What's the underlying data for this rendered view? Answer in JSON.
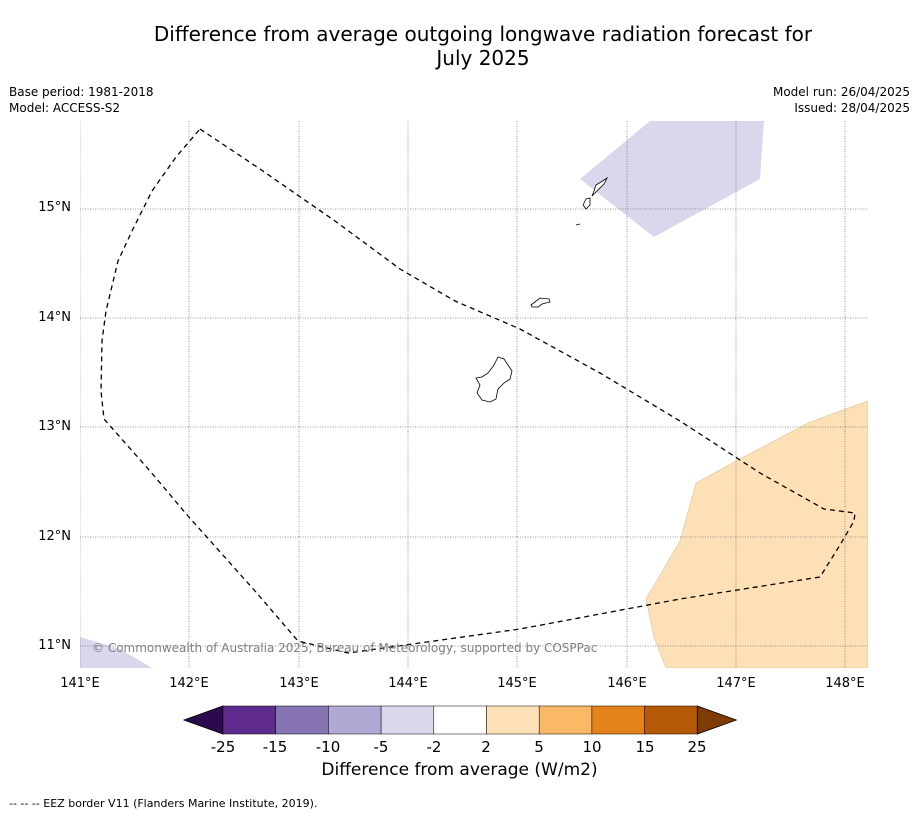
{
  "title_line1": "Difference from average outgoing longwave radiation forecast for",
  "title_line2": "July 2025",
  "meta": {
    "base_period": "Base period: 1981-2018",
    "model": "Model: ACCESS-S2",
    "model_run": "Model run: 26/04/2025",
    "issued": "Issued: 28/04/2025"
  },
  "axes": {
    "lat_ticks": [
      "15°N",
      "14°N",
      "13°N",
      "12°N",
      "11°N"
    ],
    "lon_ticks": [
      "141°E",
      "142°E",
      "143°E",
      "144°E",
      "145°E",
      "146°E",
      "147°E",
      "148°E"
    ]
  },
  "copyright": "© Commonwealth of Australia 2025, Bureau of Meteorology, supported by COSPPac",
  "colorbar": {
    "label": "Difference from average (W/m2)",
    "ticks": [
      "-25",
      "-15",
      "-10",
      "-5",
      "-2",
      "2",
      "5",
      "10",
      "15",
      "25"
    ],
    "colors": [
      "#2d0a4e",
      "#5e2a8c",
      "#8673b2",
      "#b1a8d3",
      "#d8d7eb",
      "#ffffff",
      "#fde0b6",
      "#fcb865",
      "#e38319",
      "#b55808",
      "#7e3b08"
    ]
  },
  "footnote": "--  --  -- EEZ border V11 (Flanders Marine Institute, 2019)."
}
